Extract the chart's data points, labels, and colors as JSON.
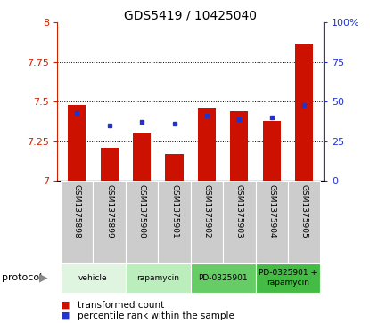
{
  "title": "GDS5419 / 10425040",
  "samples": [
    "GSM1375898",
    "GSM1375899",
    "GSM1375900",
    "GSM1375901",
    "GSM1375902",
    "GSM1375903",
    "GSM1375904",
    "GSM1375905"
  ],
  "red_values": [
    7.48,
    7.21,
    7.3,
    7.17,
    7.46,
    7.44,
    7.38,
    7.87
  ],
  "blue_values": [
    43,
    35,
    37,
    36,
    41,
    39,
    40,
    48
  ],
  "ylim_left": [
    7.0,
    8.0
  ],
  "ylim_right": [
    0,
    100
  ],
  "yticks_left": [
    7.0,
    7.25,
    7.5,
    7.75,
    8.0
  ],
  "ytick_labels_left": [
    "7",
    "7.25",
    "7.5",
    "7.75",
    "8"
  ],
  "yticks_right": [
    0,
    25,
    50,
    75,
    100
  ],
  "ytick_labels_right": [
    "0",
    "25",
    "50",
    "75",
    "100%"
  ],
  "protocols": [
    {
      "label": "vehicle",
      "span": [
        0,
        2
      ],
      "color": "#e0f5e0"
    },
    {
      "label": "rapamycin",
      "span": [
        2,
        4
      ],
      "color": "#bbeebc"
    },
    {
      "label": "PD-0325901",
      "span": [
        4,
        6
      ],
      "color": "#66cc66"
    },
    {
      "label": "PD-0325901 +\nrapamycin",
      "span": [
        6,
        8
      ],
      "color": "#44bb44"
    }
  ],
  "bar_color": "#cc1100",
  "dot_color": "#2233cc",
  "bar_width": 0.55,
  "base_value": 7.0,
  "label_area_color": "#cccccc",
  "legend_red": "transformed count",
  "legend_blue": "percentile rank within the sample",
  "left_tick_color": "#cc2200",
  "right_tick_color": "#2233cc"
}
